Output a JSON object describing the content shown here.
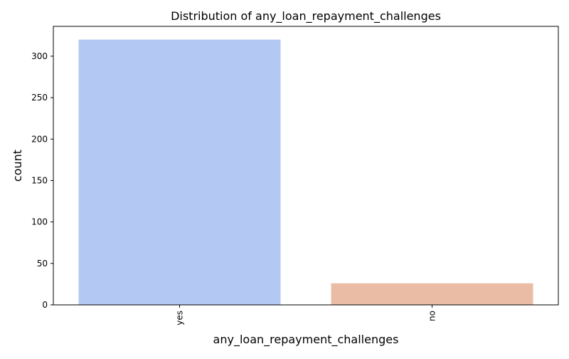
{
  "chart_data": {
    "type": "bar",
    "title": "Distribution of any_loan_repayment_challenges",
    "xlabel": "any_loan_repayment_challenges",
    "ylabel": "count",
    "categories": [
      "yes",
      "no"
    ],
    "values": [
      320,
      26
    ],
    "ylim": [
      0,
      336
    ],
    "yticks": [
      0,
      50,
      100,
      150,
      200,
      250,
      300
    ],
    "grid": false,
    "colors": [
      "#b3c9f3",
      "#eabba5"
    ]
  }
}
